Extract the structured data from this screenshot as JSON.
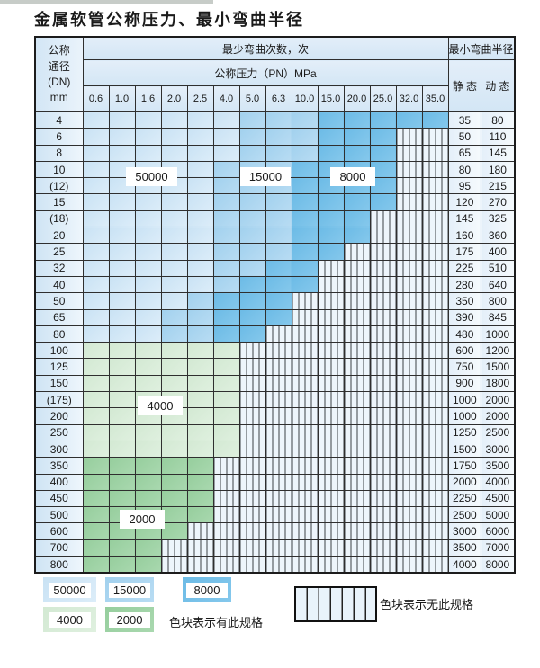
{
  "title": "金属软管公称压力、最小弯曲半径",
  "colors": {
    "blue_light": "#c9e2f4",
    "blue_medium": "#a2d1ee",
    "blue_dark": "#6cbbe6",
    "green_light": "#d3e9d3",
    "green_dark": "#96ce9d",
    "hatch_bg": "#edf5fb",
    "header_bg": "#d3e6f5",
    "border": "#2f2f2f"
  },
  "table": {
    "header": {
      "dn_lines": [
        "公称",
        "通径",
        "(DN)",
        "mm"
      ],
      "bend_cycles_label": "最少弯曲次数，次",
      "pressure_label": "公称压力（PN）MPa",
      "radius_label": "最小弯曲半径",
      "static_label": "静 态",
      "dynamic_label": "动 态",
      "pressures": [
        "0.6",
        "1.0",
        "1.6",
        "2.0",
        "2.5",
        "4.0",
        "5.0",
        "6.3",
        "10.0",
        "15.0",
        "20.0",
        "25.0",
        "32.0",
        "35.0"
      ]
    },
    "rows": [
      {
        "dn": "4",
        "static": "35",
        "dynamic": "80",
        "zone": "blue",
        "cols": 14,
        "med": 6,
        "dark": 9
      },
      {
        "dn": "6",
        "static": "50",
        "dynamic": "110",
        "zone": "blue",
        "cols": 12,
        "med": 6,
        "dark": 9
      },
      {
        "dn": "8",
        "static": "65",
        "dynamic": "145",
        "zone": "blue",
        "cols": 12,
        "med": 6,
        "dark": 9
      },
      {
        "dn": "10",
        "static": "80",
        "dynamic": "180",
        "zone": "blue",
        "cols": 12,
        "med": 5,
        "dark": 8
      },
      {
        "dn": "(12)",
        "static": "95",
        "dynamic": "215",
        "zone": "blue",
        "cols": 12,
        "med": 5,
        "dark": 8
      },
      {
        "dn": "15",
        "static": "120",
        "dynamic": "270",
        "zone": "blue",
        "cols": 12,
        "med": 5,
        "dark": 8
      },
      {
        "dn": "(18)",
        "static": "145",
        "dynamic": "325",
        "zone": "blue",
        "cols": 11,
        "med": 5,
        "dark": 8
      },
      {
        "dn": "20",
        "static": "160",
        "dynamic": "360",
        "zone": "blue",
        "cols": 11,
        "med": 5,
        "dark": 8
      },
      {
        "dn": "25",
        "static": "175",
        "dynamic": "400",
        "zone": "blue",
        "cols": 10,
        "med": 5,
        "dark": 8
      },
      {
        "dn": "32",
        "static": "225",
        "dynamic": "510",
        "zone": "blue",
        "cols": 9,
        "med": 5,
        "dark": 7
      },
      {
        "dn": "40",
        "static": "280",
        "dynamic": "640",
        "zone": "blue",
        "cols": 9,
        "med": 5,
        "dark": 6
      },
      {
        "dn": "50",
        "static": "350",
        "dynamic": "800",
        "zone": "blue",
        "cols": 8,
        "med": 4,
        "dark": 5
      },
      {
        "dn": "65",
        "static": "390",
        "dynamic": "845",
        "zone": "blue",
        "cols": 8,
        "med": 3,
        "dark": 5
      },
      {
        "dn": "80",
        "static": "480",
        "dynamic": "1000",
        "zone": "blue",
        "cols": 7,
        "med": 3,
        "dark": 5
      },
      {
        "dn": "100",
        "static": "600",
        "dynamic": "1200",
        "zone": "gl",
        "cols": 6
      },
      {
        "dn": "125",
        "static": "750",
        "dynamic": "1500",
        "zone": "gl",
        "cols": 6
      },
      {
        "dn": "150",
        "static": "900",
        "dynamic": "1800",
        "zone": "gl",
        "cols": 6
      },
      {
        "dn": "(175)",
        "static": "1000",
        "dynamic": "2000",
        "zone": "gl",
        "cols": 6
      },
      {
        "dn": "200",
        "static": "1000",
        "dynamic": "2000",
        "zone": "gl",
        "cols": 6
      },
      {
        "dn": "250",
        "static": "1250",
        "dynamic": "2500",
        "zone": "gl",
        "cols": 6
      },
      {
        "dn": "300",
        "static": "1500",
        "dynamic": "3000",
        "zone": "gl",
        "cols": 6
      },
      {
        "dn": "350",
        "static": "1750",
        "dynamic": "3500",
        "zone": "gd",
        "cols": 5
      },
      {
        "dn": "400",
        "static": "2000",
        "dynamic": "4000",
        "zone": "gd",
        "cols": 5
      },
      {
        "dn": "450",
        "static": "2250",
        "dynamic": "4500",
        "zone": "gd",
        "cols": 5
      },
      {
        "dn": "500",
        "static": "2500",
        "dynamic": "5000",
        "zone": "gd",
        "cols": 5
      },
      {
        "dn": "600",
        "static": "3000",
        "dynamic": "6000",
        "zone": "gd",
        "cols": 4
      },
      {
        "dn": "700",
        "static": "3500",
        "dynamic": "7000",
        "zone": "gd",
        "cols": 3
      },
      {
        "dn": "800",
        "static": "4000",
        "dynamic": "8000",
        "zone": "gd",
        "cols": 3
      }
    ]
  },
  "bend_cycle_classes": [
    {
      "value": "50000",
      "color_key": "blue_light"
    },
    {
      "value": "15000",
      "color_key": "blue_medium"
    },
    {
      "value": "8000",
      "color_key": "blue_dark"
    },
    {
      "value": "4000",
      "color_key": "green_light"
    },
    {
      "value": "2000",
      "color_key": "green_dark"
    }
  ],
  "legend": {
    "has_spec_label": "色块表示有此规格",
    "no_spec_label": "色块表示无此规格"
  }
}
